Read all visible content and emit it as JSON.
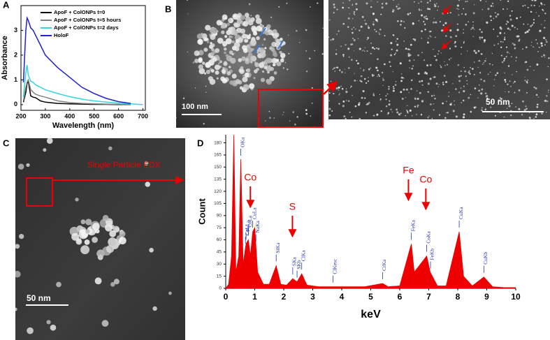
{
  "panel_labels": [
    "A",
    "B",
    "C",
    "D"
  ],
  "images": {
    "b_left_scale": "100 nm",
    "b_right_scale": "50 nm",
    "c_scale": "50 nm",
    "c_annotation": "Single Particle EDX"
  },
  "chart_data": [
    {
      "type": "line",
      "xlabel": "Wavelength (nm)",
      "ylabel": "Absorbance",
      "x": [
        210,
        220,
        225,
        230,
        240,
        250,
        260,
        280,
        300,
        350,
        400,
        450,
        500,
        550,
        600,
        650,
        700
      ],
      "series": [
        {
          "name": "ApoF + ColONPs t=0",
          "color": "#000000",
          "values": [
            0.1,
            0.5,
            0.85,
            0.95,
            0.35,
            0.3,
            0.28,
            0.15,
            0.1,
            0.05,
            0.03,
            0.02,
            0.01,
            0.01,
            0.0,
            0.0,
            null
          ]
        },
        {
          "name": "ApoF + ColONPs t=5 hours",
          "color": "#808080",
          "values": [
            0.15,
            0.7,
            0.9,
            1.0,
            0.6,
            0.5,
            0.42,
            0.35,
            0.3,
            0.15,
            0.08,
            0.05,
            0.03,
            0.02,
            0.01,
            0.0,
            null
          ]
        },
        {
          "name": "ApoF + ColONPs t=2 days",
          "color": "#33d6e0",
          "values": [
            0.3,
            1.3,
            1.6,
            1.2,
            0.95,
            0.9,
            0.8,
            0.7,
            0.6,
            0.45,
            0.32,
            0.22,
            0.15,
            0.1,
            0.06,
            0.03,
            0.0
          ]
        },
        {
          "name": "HoloF",
          "color": "#1f1fd0",
          "values": [
            0.9,
            3.0,
            3.5,
            3.4,
            3.1,
            3.0,
            2.8,
            2.4,
            2.0,
            1.5,
            1.1,
            0.7,
            0.45,
            0.25,
            0.12,
            0.05,
            null
          ]
        }
      ],
      "xlim": [
        200,
        710
      ],
      "xticks": [
        200,
        300,
        400,
        500,
        600,
        700
      ],
      "ylim": [
        -0.23,
        4.0
      ],
      "yticks": [
        0,
        1,
        2,
        3
      ]
    },
    {
      "type": "area",
      "xlabel": "keV",
      "ylabel": "Count",
      "color": "#ee0000",
      "x": [
        0.1,
        0.2,
        0.28,
        0.35,
        0.45,
        0.52,
        0.6,
        0.7,
        0.78,
        0.85,
        0.93,
        1.0,
        1.1,
        1.3,
        1.5,
        1.74,
        1.9,
        2.1,
        2.31,
        2.46,
        2.62,
        2.8,
        3.2,
        3.7,
        4.2,
        4.8,
        5.41,
        5.6,
        6.0,
        6.4,
        6.5,
        6.93,
        7.05,
        7.3,
        7.6,
        8.05,
        8.2,
        8.5,
        8.9,
        9.2,
        9.6,
        10
      ],
      "values": [
        5,
        40,
        190,
        20,
        40,
        160,
        30,
        55,
        60,
        40,
        70,
        75,
        20,
        5,
        5,
        28,
        5,
        4,
        12,
        8,
        18,
        4,
        2,
        2,
        2,
        2,
        6,
        2,
        3,
        55,
        20,
        40,
        20,
        3,
        3,
        70,
        15,
        3,
        14,
        2,
        1,
        1
      ],
      "xlim": [
        0,
        10
      ],
      "xticks": [
        0,
        1,
        2,
        3,
        4,
        5,
        6,
        7,
        8,
        9,
        10
      ],
      "ylim": [
        0,
        190
      ],
      "yticks": [
        0,
        15,
        30,
        45,
        60,
        75,
        90,
        105,
        120,
        135,
        150,
        165,
        180
      ],
      "peak_labels": [
        {
          "label": "OKa",
          "x": 0.52
        },
        {
          "label": "CoLl",
          "x": 0.68
        },
        {
          "label": "FeLa",
          "x": 0.7
        },
        {
          "label": "CoLa",
          "x": 0.78
        },
        {
          "label": "CuLa",
          "x": 0.93
        },
        {
          "label": "NaKa",
          "x": 1.04
        },
        {
          "label": "SiKa",
          "x": 1.74
        },
        {
          "label": "SKa",
          "x": 2.31
        },
        {
          "label": "SKb",
          "x": 2.46
        },
        {
          "label": "ClKa",
          "x": 2.62
        },
        {
          "label": "ClKesc",
          "x": 3.7
        },
        {
          "label": "CrKa",
          "x": 5.41
        },
        {
          "label": "FeKa",
          "x": 6.4
        },
        {
          "label": "CoKa",
          "x": 6.93
        },
        {
          "label": "FeKb",
          "x": 7.06
        },
        {
          "label": "CuKa",
          "x": 8.05
        },
        {
          "label": "CuKb",
          "x": 8.9
        }
      ],
      "annotations": [
        {
          "text": "Co",
          "x": 0.85
        },
        {
          "text": "S",
          "x": 2.3
        },
        {
          "text": "Fe",
          "x": 6.3
        },
        {
          "text": "Co",
          "x": 6.9
        }
      ]
    }
  ]
}
